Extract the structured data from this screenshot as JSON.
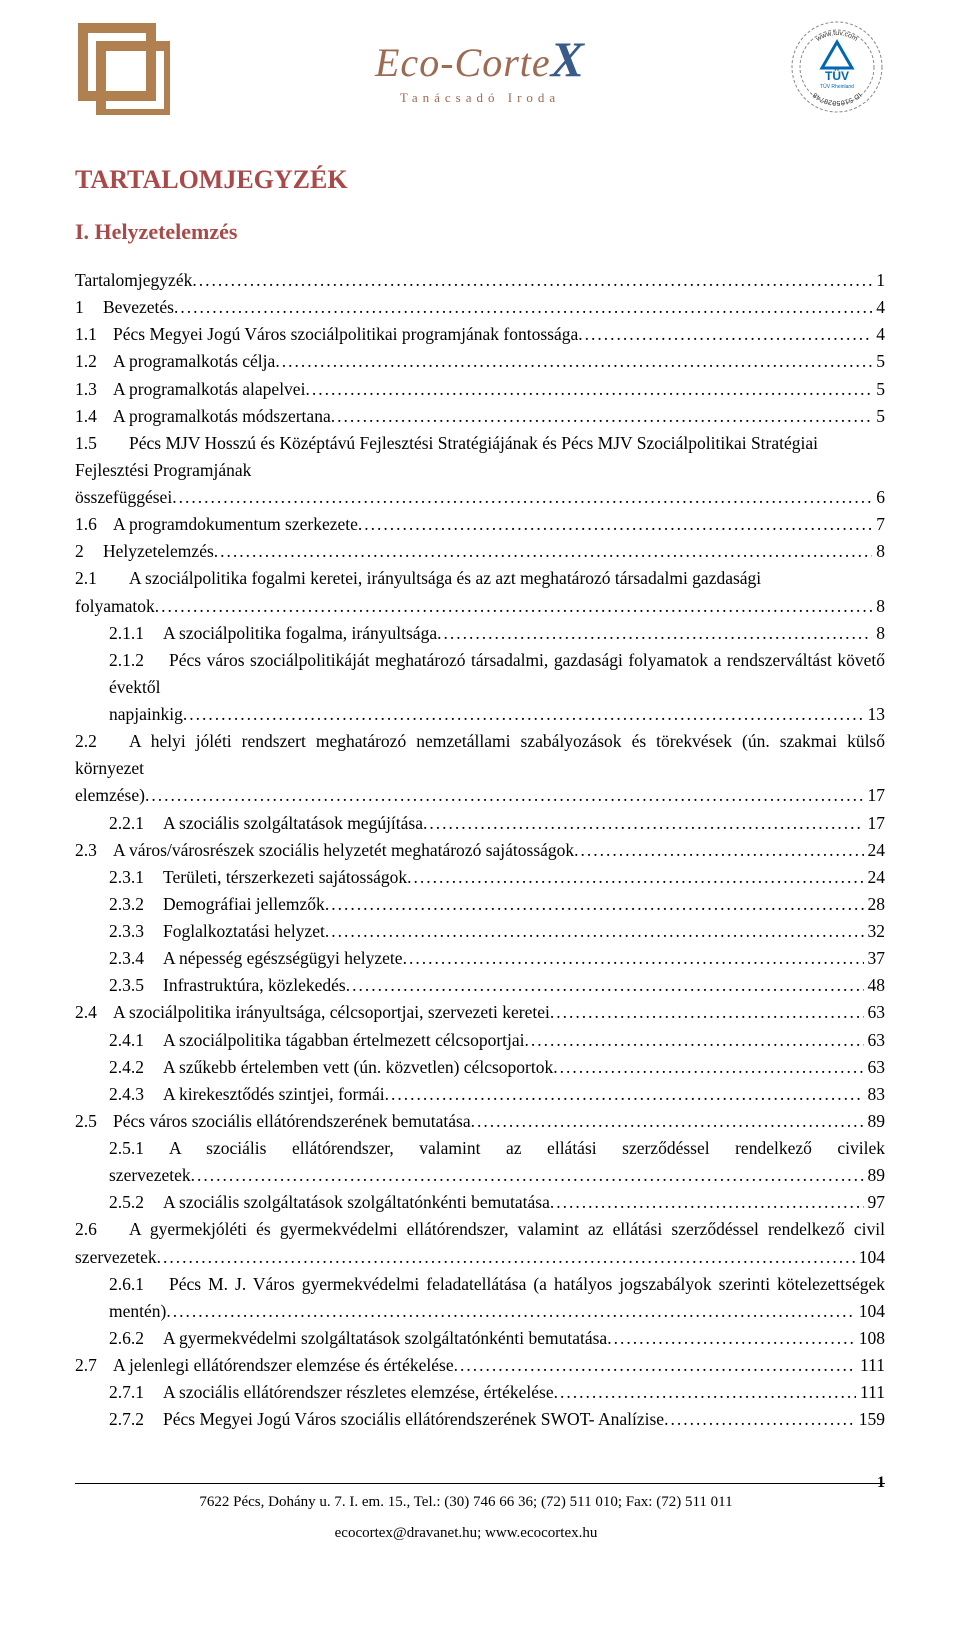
{
  "header": {
    "brand": "Eco-Corte",
    "brand_x": "X",
    "tagline": "Tanácsadó Iroda",
    "logo_left_color": "#b08050",
    "tuv_text_top": "www.tuv.com",
    "tuv_text_id": "ID 5105028748",
    "tuv_text_mid": "TÜV",
    "tuv_text_sub": "TÜV Rheinland"
  },
  "title": "TARTALOMJEGYZÉK",
  "subtitle": "I. Helyzetelemzés",
  "toc": [
    {
      "lvl": 0,
      "num": "",
      "label": "Tartalomjegyzék",
      "page": "1"
    },
    {
      "lvl": 0,
      "num": "1",
      "label": "Bevezetés",
      "page": "4"
    },
    {
      "lvl": 1,
      "num": "1.1",
      "label": "Pécs Megyei Jogú Város szociálpolitikai programjának fontossága",
      "page": "4"
    },
    {
      "lvl": 1,
      "num": "1.2",
      "label": "A programalkotás célja",
      "page": "5"
    },
    {
      "lvl": 1,
      "num": "1.3",
      "label": "A programalkotás alapelvei",
      "page": "5"
    },
    {
      "lvl": 1,
      "num": "1.4",
      "label": "A programalkotás módszertana",
      "page": "5"
    },
    {
      "lvl": 1,
      "num": "1.5",
      "label": "Pécs MJV Hosszú és Középtávú Fejlesztési Stratégiájának és Pécs MJV Szociálpolitikai Stratégiai Fejlesztési Programjának összefüggései",
      "page": "6",
      "wrap": true
    },
    {
      "lvl": 1,
      "num": "1.6",
      "label": "A programdokumentum szerkezete",
      "page": "7"
    },
    {
      "lvl": 0,
      "num": "2",
      "label": "Helyzetelemzés",
      "page": "8"
    },
    {
      "lvl": 1,
      "num": "2.1",
      "label": "A szociálpolitika fogalmi keretei, irányultsága és az azt meghatározó társadalmi gazdasági folyamatok",
      "page": "8",
      "wrap": true
    },
    {
      "lvl": 2,
      "num": "2.1.1",
      "label": "A szociálpolitika fogalma, irányultsága",
      "page": "8"
    },
    {
      "lvl": 2,
      "num": "2.1.2",
      "label": "Pécs város szociálpolitikáját meghatározó társadalmi, gazdasági folyamatok a rendszerváltást követő évektől napjainkig",
      "page": "13",
      "wrap": true,
      "justify": true
    },
    {
      "lvl": 1,
      "num": "2.2",
      "label": "A helyi jóléti rendszert meghatározó nemzetállami szabályozások és törekvések (ún. szakmai külső környezet elemzése)",
      "page": "17",
      "wrap": true,
      "justify": true
    },
    {
      "lvl": 2,
      "num": "2.2.1",
      "label": "A szociális szolgáltatások megújítása",
      "page": "17"
    },
    {
      "lvl": 1,
      "num": "2.3",
      "label": "A város/városrészek szociális helyzetét meghatározó sajátosságok",
      "page": "24"
    },
    {
      "lvl": 2,
      "num": "2.3.1",
      "label": "Területi, térszerkezeti sajátosságok",
      "page": "24"
    },
    {
      "lvl": 2,
      "num": "2.3.2",
      "label": "Demográfiai jellemzők",
      "page": "28"
    },
    {
      "lvl": 2,
      "num": "2.3.3",
      "label": "Foglalkoztatási helyzet",
      "page": "32"
    },
    {
      "lvl": 2,
      "num": "2.3.4",
      "label": "A népesség egészségügyi helyzete",
      "page": "37"
    },
    {
      "lvl": 2,
      "num": "2.3.5",
      "label": "Infrastruktúra, közlekedés",
      "page": "48"
    },
    {
      "lvl": 1,
      "num": "2.4",
      "label": "A szociálpolitika irányultsága, célcsoportjai, szervezeti keretei",
      "page": "63"
    },
    {
      "lvl": 2,
      "num": "2.4.1",
      "label": "A szociálpolitika tágabban értelmezett célcsoportjai",
      "page": "63"
    },
    {
      "lvl": 2,
      "num": "2.4.2",
      "label": "A szűkebb értelemben vett (ún. közvetlen) célcsoportok",
      "page": "63"
    },
    {
      "lvl": 2,
      "num": "2.4.3",
      "label": "A kirekesztődés szintjei, formái",
      "page": "83"
    },
    {
      "lvl": 1,
      "num": "2.5",
      "label": "Pécs város szociális ellátórendszerének bemutatása",
      "page": "89"
    },
    {
      "lvl": 2,
      "num": "2.5.1",
      "label": "A szociális ellátórendszer, valamint az ellátási szerződéssel rendelkező civilek szervezetek",
      "page": "89",
      "wrap": true,
      "justify": true
    },
    {
      "lvl": 2,
      "num": "2.5.2",
      "label": "A szociális szolgáltatások szolgáltatónkénti bemutatása",
      "page": "97"
    },
    {
      "lvl": 1,
      "num": "2.6",
      "label": "A gyermekjóléti és gyermekvédelmi ellátórendszer, valamint az ellátási szerződéssel rendelkező civil szervezetek",
      "page": "104",
      "wrap": true,
      "justify": true
    },
    {
      "lvl": 2,
      "num": "2.6.1",
      "label": "Pécs M. J. Város gyermekvédelmi feladatellátása (a hatályos jogszabályok szerinti kötelezettségek mentén)",
      "page": "104",
      "wrap": true,
      "justify": true
    },
    {
      "lvl": 2,
      "num": "2.6.2",
      "label": "A gyermekvédelmi szolgáltatások szolgáltatónkénti bemutatása",
      "page": "108"
    },
    {
      "lvl": 1,
      "num": "2.7",
      "label": "A jelenlegi ellátórendszer elemzése és értékelése",
      "page": "111"
    },
    {
      "lvl": 2,
      "num": "2.7.1",
      "label": "A szociális ellátórendszer részletes elemzése, értékelése",
      "page": "111"
    },
    {
      "lvl": 2,
      "num": "2.7.2",
      "label": "Pécs Megyei Jogú Város szociális ellátórendszerének SWOT- Analízise",
      "page": "159"
    }
  ],
  "footer": {
    "address": "7622 Pécs, Dohány u. 7. I. em. 15., Tel.: (30) 746 66 36; (72) 511 010; Fax: (72) 511 011",
    "contact": "ecocortex@dravanet.hu; www.ecocortex.hu",
    "page_number": "1"
  },
  "colors": {
    "heading": "#a94a4a",
    "brand": "#9d6a52",
    "brand_x": "#3a5a8a",
    "logo_left": "#b08050",
    "tuv_blue": "#0066b3",
    "text": "#000000",
    "background": "#ffffff"
  }
}
